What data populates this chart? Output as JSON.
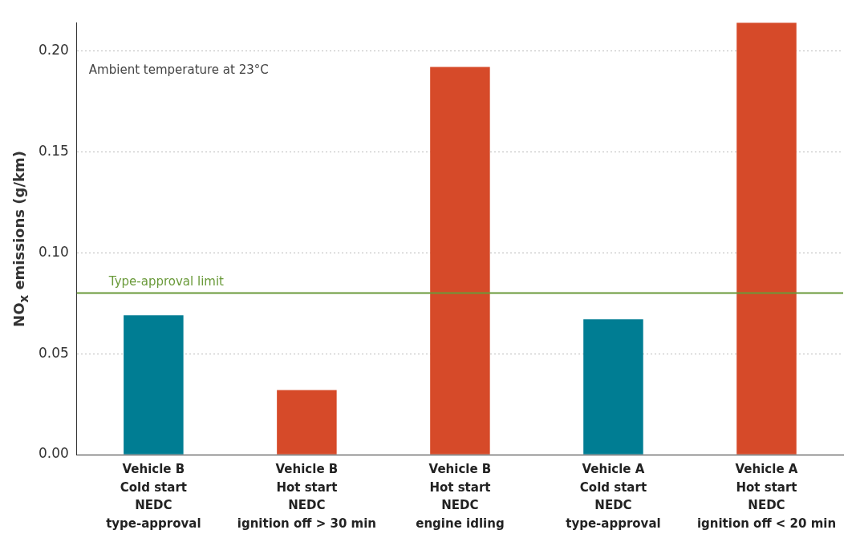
{
  "chart_data": {
    "type": "bar",
    "ylabel": "NO$_{x}$ emissions (g/km)",
    "categories": [
      "Vehicle B\nCold start\nNEDC\ntype-approval",
      "Vehicle B\nHot start\nNEDC\nignition off > 30 min",
      "Vehicle B\nHot start\nNEDC\nengine idling",
      "Vehicle A\nCold start\nNEDC\ntype-approval",
      "Vehicle A\nHot start\nNEDC\nignition off < 20 min"
    ],
    "values": [
      0.069,
      0.032,
      0.192,
      0.067,
      0.214
    ],
    "colors": [
      "#007d93",
      "#d64a29",
      "#d64a29",
      "#007d93",
      "#d64a29"
    ],
    "ylim": [
      0,
      0.214
    ],
    "yticks": [
      {
        "value": 0,
        "label": "0.00"
      },
      {
        "value": 0.05,
        "label": "0.05"
      },
      {
        "value": 0.1,
        "label": "0.10"
      },
      {
        "value": 0.15,
        "label": "0.15"
      },
      {
        "value": 0.2,
        "label": "0.20"
      }
    ],
    "grid": "y",
    "legend": false,
    "ref_lines": [
      {
        "axis": "y",
        "value": 0.08,
        "label": "Type-approval limit",
        "color": "#6a9a3a"
      }
    ],
    "annotations": [
      "Ambient temperature at 23°C"
    ]
  }
}
